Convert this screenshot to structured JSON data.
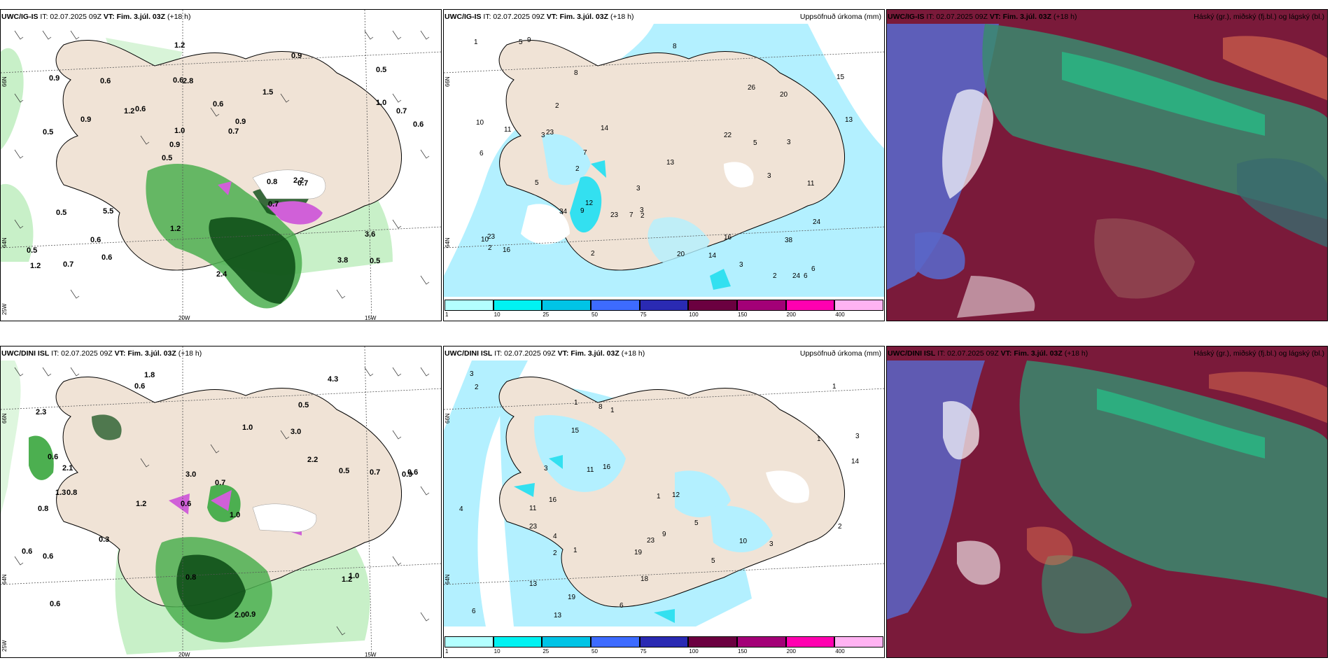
{
  "rows": [
    {
      "model": "UWC/IG-IS",
      "panels": [
        {
          "header_model": "UWC/IG-IS",
          "header_it": "IT: 02.07.2025 09Z",
          "header_vt": "VT: Fim. 3.júl. 03Z",
          "header_lead": "(+18 h)",
          "right_title": ""
        },
        {
          "header_model": "UWC/IG-IS",
          "header_it": "IT: 02.07.2025 09Z",
          "header_vt": "VT: Fim. 3.júl. 03Z",
          "header_lead": "(+18 h)",
          "right_title": "Uppsöfnuð úrkoma (mm)"
        },
        {
          "header_model": "UWC/IG-IS",
          "header_it": "IT: 02.07.2025 09Z",
          "header_vt": "VT: Fim. 3.júl. 03Z",
          "header_lead": "(+18 h)",
          "right_title": "Háský (gr.), miðský (fj.bl.) og lágský (bl.)"
        }
      ]
    },
    {
      "model": "UWC/DINI ISL",
      "panels": [
        {
          "header_model": "UWC/DINI ISL",
          "header_it": "IT: 02.07.2025 09Z",
          "header_vt": "VT: Fim. 3.júl. 03Z",
          "header_lead": "(+18 h)",
          "right_title": ""
        },
        {
          "header_model": "UWC/DINI ISL",
          "header_it": "IT: 02.07.2025 09Z",
          "header_vt": "VT: Fim. 3.júl. 03Z",
          "header_lead": "(+18 h)",
          "right_title": "Uppsöfnuð úrkoma (mm)"
        },
        {
          "header_model": "UWC/DINI ISL",
          "header_it": "IT: 02.07.2025 09Z",
          "header_vt": "VT: Fim. 3.júl. 03Z",
          "header_lead": "(+18 h)",
          "right_title": "Háský (gr.), miðský (fj.bl.) og lágský (bl.)"
        }
      ]
    }
  ],
  "grid_labels": {
    "lat_66": "66N",
    "lat_64": "64N",
    "lon_20": "20W",
    "lon_15": "15W",
    "lon_25": "25W"
  },
  "legend": {
    "labels": [
      "1",
      "10",
      "25",
      "50",
      "75",
      "100",
      "150",
      "200",
      "400"
    ],
    "colors": [
      "#b3ffff",
      "#00f2f2",
      "#00c4e6",
      "#3d6bff",
      "#2a2ab3",
      "#6b0040",
      "#a30077",
      "#ff00b0",
      "#ffb3f2"
    ]
  },
  "colors": {
    "land": "#f0e3d6",
    "precip_light": "#b3f0ff",
    "precip_mid": "#33e0f0",
    "green_light": "#c8f0c8",
    "green_mid": "#4caf50",
    "green_dark": "#0a4a14",
    "magenta": "#d060d8",
    "cloud_high": "#3a8a6e",
    "cloud_mid": "#5a66c8",
    "cloud_low": "#7a1a3a"
  },
  "top_left_values": [
    "0.5",
    "0.5",
    "0.5",
    "0.5",
    "1.5",
    "0.7",
    "0.6",
    "0.6",
    "0.5",
    "0.6",
    "0.5",
    "0.6",
    "2.8",
    "0.9",
    "0.7",
    "0.9",
    "1.2",
    "0.6",
    "0.8",
    "1.0",
    "0.9",
    "1.2",
    "1.0",
    "0.6",
    "0.9",
    "5.5",
    "3.8",
    "3.6",
    "2.2",
    "2.4",
    "1.2",
    "0.9",
    "0.7",
    "0.6",
    "0.7",
    "0.7",
    "1.2"
  ],
  "top_mid_values": [
    "3",
    "3",
    "5",
    "3",
    "6",
    "8",
    "7",
    "2",
    "9",
    "5",
    "3",
    "8",
    "1",
    "2",
    "7",
    "16",
    "13",
    "13",
    "15",
    "14",
    "24",
    "23",
    "14",
    "34",
    "38",
    "22",
    "20",
    "23",
    "20",
    "10",
    "12",
    "23",
    "16",
    "24",
    "26",
    "10",
    "11",
    "9",
    "5",
    "2",
    "6",
    "6",
    "11",
    "3",
    "2",
    "2",
    "3",
    "2"
  ],
  "bottom_left_values": [
    "1.8",
    "0.5",
    "0.9",
    "0.6",
    "1.0",
    "0.8",
    "2.3",
    "3.0",
    "0.8",
    "1.0",
    "0.7",
    "0.6",
    "0.6",
    "1.2",
    "2.0",
    "0.9",
    "0.8",
    "4.3",
    "2.2",
    "0.3",
    "2.1",
    "1.3",
    "0.6",
    "0.7",
    "0.6",
    "0.6",
    "3.0",
    "0.5",
    "1.0",
    "0.6",
    "1.2"
  ],
  "bottom_mid_values": [
    "2",
    "3",
    "4",
    "1",
    "3",
    "5",
    "1",
    "1",
    "6",
    "10",
    "2",
    "12",
    "13",
    "23",
    "23",
    "11",
    "19",
    "13",
    "15",
    "16",
    "14",
    "18",
    "19",
    "16",
    "11",
    "9",
    "4",
    "3",
    "6",
    "8",
    "5",
    "1",
    "1",
    "2",
    "1",
    "3"
  ]
}
